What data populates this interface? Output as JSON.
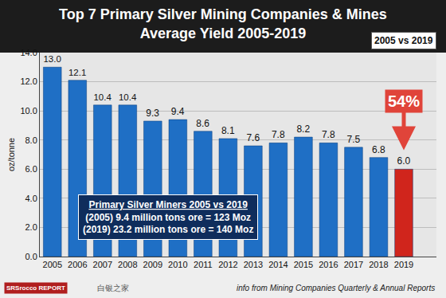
{
  "chart_data": {
    "type": "bar",
    "title": "Top 7 Primary Silver Mining Companies & Mines",
    "subtitle": "Average Yield 2005-2019",
    "y_label": "oz/tonne",
    "categories": [
      "2005",
      "2006",
      "2007",
      "2008",
      "2009",
      "2010",
      "2011",
      "2012",
      "2013",
      "2014",
      "2015",
      "2016",
      "2017",
      "2018",
      "2019"
    ],
    "values": [
      13.0,
      12.1,
      10.4,
      10.4,
      9.3,
      9.4,
      8.6,
      8.1,
      7.6,
      7.8,
      8.2,
      7.8,
      7.5,
      6.8,
      6.0
    ],
    "value_labels": [
      "13.0",
      "12.1",
      "10.4",
      "10.4",
      "9.3",
      "9.4",
      "8.6",
      "8.1",
      "7.6",
      "7.8",
      "8.2",
      "7.8",
      "7.5",
      "6.8",
      "6.0"
    ],
    "colors": [
      "#1f6fc5",
      "#1f6fc5",
      "#1f6fc5",
      "#1f6fc5",
      "#1f6fc5",
      "#1f6fc5",
      "#1f6fc5",
      "#1f6fc5",
      "#1f6fc5",
      "#1f6fc5",
      "#1f6fc5",
      "#1f6fc5",
      "#1f6fc5",
      "#1f6fc5",
      "#d0251c"
    ],
    "ylim": [
      0,
      14
    ],
    "yticks": [
      {
        "value": 0,
        "label": "0.0"
      },
      {
        "value": 2,
        "label": "2.0"
      },
      {
        "value": 4,
        "label": "4.0"
      },
      {
        "value": 6,
        "label": "6.0"
      },
      {
        "value": 8,
        "label": "8.0"
      },
      {
        "value": 10,
        "label": "10.0"
      },
      {
        "value": 12,
        "label": "12.0"
      },
      {
        "value": 14,
        "label": "14.0"
      }
    ],
    "grid": true,
    "data_labels": true,
    "annotations": [
      "2005 vs 2019",
      "54%",
      "Primary Silver Miners 2005 vs 2019",
      "(2005) 9.4 million tons ore = 123 Moz",
      "(2019) 23.2 million tons ore = 140 Moz",
      "info from Mining Companies Quarterly & Annual Reports",
      "SRSrocco REPORT",
      "白银之家"
    ]
  }
}
